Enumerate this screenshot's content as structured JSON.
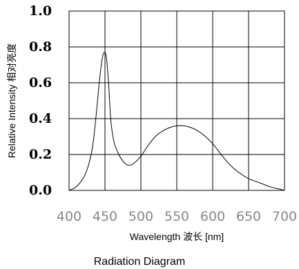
{
  "chart_data": {
    "type": "line",
    "xlabel": "Wavelength 波长 [nm]",
    "ylabel": "Relative Intensity 相对亮度",
    "caption": "Radiation Diagram",
    "xlim": [
      400,
      700
    ],
    "ylim": [
      0,
      1.0
    ],
    "x_ticks": [
      "400",
      "450",
      "500",
      "550",
      "600",
      "650",
      "700"
    ],
    "y_ticks": [
      "0.0",
      "0.2",
      "0.4",
      "0.6",
      "0.8",
      "1.0"
    ],
    "grid": true,
    "series": [
      {
        "x": [
          400,
          410,
          420,
          427,
          433,
          438,
          442,
          446,
          449,
          452,
          455,
          458,
          462,
          467,
          472,
          478,
          484,
          490,
          500,
          510,
          520,
          530,
          540,
          550,
          560,
          570,
          580,
          590,
          600,
          610,
          620,
          630,
          640,
          650,
          660,
          670,
          680,
          690,
          700
        ],
        "y": [
          0.0,
          0.02,
          0.07,
          0.14,
          0.25,
          0.43,
          0.6,
          0.73,
          0.77,
          0.74,
          0.6,
          0.4,
          0.28,
          0.22,
          0.18,
          0.15,
          0.14,
          0.15,
          0.19,
          0.25,
          0.3,
          0.33,
          0.35,
          0.36,
          0.36,
          0.35,
          0.33,
          0.3,
          0.26,
          0.21,
          0.16,
          0.12,
          0.09,
          0.065,
          0.05,
          0.035,
          0.02,
          0.01,
          0.0
        ]
      }
    ]
  }
}
